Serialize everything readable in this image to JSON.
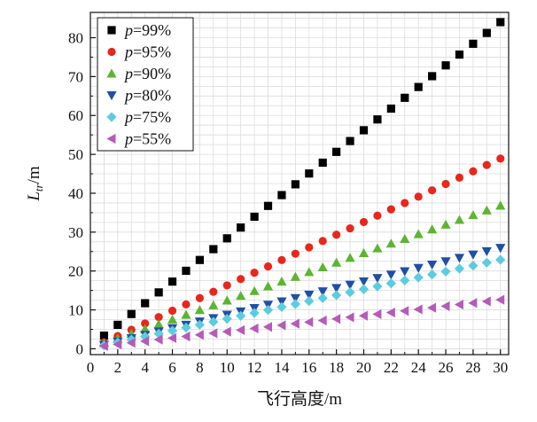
{
  "chart_data": {
    "type": "scatter",
    "title": "",
    "xlabel": "飞行高度/m",
    "ylabel": "L_tr/m",
    "ylabel_main": "L",
    "ylabel_sub": "tr",
    "ylabel_unit": "/m",
    "xlim": [
      0,
      30.6
    ],
    "ylim": [
      -1.5,
      86.5
    ],
    "xticks": [
      0,
      2,
      4,
      6,
      8,
      10,
      12,
      14,
      16,
      18,
      20,
      22,
      24,
      26,
      28,
      30
    ],
    "yticks": [
      0,
      10,
      20,
      30,
      40,
      50,
      60,
      70,
      80
    ],
    "grid": true,
    "legend_position": "top-left",
    "legend_prefix": "p",
    "x": [
      1,
      2,
      3,
      4,
      5,
      6,
      7,
      8,
      9,
      10,
      11,
      12,
      13,
      14,
      15,
      16,
      17,
      18,
      19,
      20,
      21,
      22,
      23,
      24,
      25,
      26,
      27,
      28,
      29,
      30
    ],
    "series": [
      {
        "name": "p=99%",
        "label": "=99%",
        "marker": "square",
        "color": "#000000",
        "slope": 2.78,
        "intercept": 0.6
      },
      {
        "name": "p=95%",
        "label": "=95%",
        "marker": "circle",
        "color": "#e8271c",
        "slope": 1.63,
        "intercept": 0.0
      },
      {
        "name": "p=90%",
        "label": "=90%",
        "marker": "triangle-up",
        "color": "#5cb531",
        "slope": 1.22,
        "intercept": 0.2
      },
      {
        "name": "p=80%",
        "label": "=80%",
        "marker": "triangle-down",
        "color": "#1f4fa6",
        "slope": 0.86,
        "intercept": 0.15
      },
      {
        "name": "p=75%",
        "label": "=75%",
        "marker": "diamond",
        "color": "#5ccce0",
        "slope": 0.76,
        "intercept": 0.1
      },
      {
        "name": "p=55%",
        "label": "=55%",
        "marker": "triangle-left",
        "color": "#b65ab8",
        "slope": 0.41,
        "intercept": 0.3
      }
    ]
  }
}
